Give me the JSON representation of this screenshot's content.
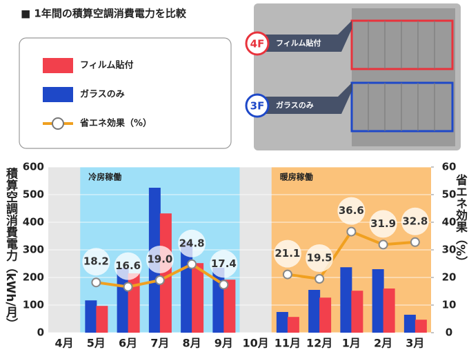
{
  "chart_data": {
    "type": "bar-line",
    "title": "■ 1年間の積算空調消費電力を比較",
    "y_label": "積算空調消費電力（kWh/月）",
    "y2_label": "省エネ効果（%）",
    "categories": [
      "4月",
      "5月",
      "6月",
      "7月",
      "8月",
      "9月",
      "10月",
      "11月",
      "12月",
      "1月",
      "2月",
      "3月"
    ],
    "series": [
      {
        "name": "フィルム貼付",
        "color": "#f2404c",
        "type": "bar",
        "values": [
          null,
          97,
          215,
          432,
          252,
          192,
          null,
          57,
          127,
          152,
          160,
          47
        ]
      },
      {
        "name": "ガラスのみ",
        "color": "#1e48c8",
        "type": "bar",
        "values": [
          null,
          117,
          235,
          525,
          330,
          235,
          null,
          75,
          155,
          237,
          230,
          65
        ]
      },
      {
        "name": "省エネ効果（%）",
        "color": "#f0a020",
        "type": "line",
        "axis": "y2",
        "values": [
          null,
          18.2,
          16.6,
          19.0,
          24.8,
          17.4,
          null,
          21.1,
          19.5,
          36.6,
          31.9,
          32.8
        ],
        "value_labels": [
          null,
          "18.2",
          "16.6",
          "19.0",
          "24.8",
          "17.4",
          null,
          "21.1",
          "19.5",
          "36.6",
          "31.9",
          "32.8"
        ]
      }
    ],
    "bands": [
      {
        "label": "冷房稼働",
        "color": "#9fe0f8"
      },
      {
        "label": "暖房稼働",
        "color": "#fbc27a"
      }
    ],
    "photo_labels": [
      {
        "floor": "4F",
        "label": "フィルム貼付",
        "color": "#e8333c"
      },
      {
        "floor": "3F",
        "label": "ガラスのみ",
        "color": "#1e48c8"
      }
    ],
    "ylim": [
      0,
      600
    ],
    "yticks": [
      0,
      100,
      200,
      300,
      400,
      500,
      600
    ],
    "y2lim": [
      0,
      60
    ],
    "y2ticks": [
      0,
      10,
      20,
      30,
      40,
      50,
      60
    ]
  }
}
